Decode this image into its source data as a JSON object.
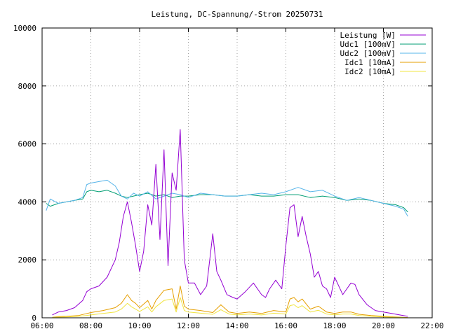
{
  "chart_data": {
    "type": "line",
    "title": "Leistung, DC-Spannung/-Strom 20250731",
    "xlabel": "",
    "ylabel": "",
    "x_range": [
      "06:00",
      "22:00"
    ],
    "ylim": [
      0,
      10000
    ],
    "x_ticks": [
      "06:00",
      "08:00",
      "10:00",
      "12:00",
      "14:00",
      "16:00",
      "18:00",
      "20:00",
      "22:00"
    ],
    "y_ticks": [
      "0",
      "2000",
      "4000",
      "6000",
      "8000",
      "10000"
    ],
    "grid": true,
    "legend_position": "top-right",
    "series": [
      {
        "name": "Leistung [W]",
        "color": "#9400d3",
        "x": [
          "06:25",
          "06:40",
          "07:00",
          "07:20",
          "07:40",
          "07:50",
          "08:00",
          "08:20",
          "08:40",
          "09:00",
          "09:10",
          "09:20",
          "09:30",
          "09:40",
          "09:50",
          "10:00",
          "10:10",
          "10:20",
          "10:30",
          "10:40",
          "10:50",
          "11:00",
          "11:10",
          "11:20",
          "11:30",
          "11:40",
          "11:50",
          "12:00",
          "12:15",
          "12:30",
          "12:45",
          "13:00",
          "13:10",
          "13:20",
          "13:35",
          "13:50",
          "14:00",
          "14:20",
          "14:40",
          "15:00",
          "15:10",
          "15:20",
          "15:35",
          "15:50",
          "16:00",
          "16:10",
          "16:20",
          "16:30",
          "16:40",
          "16:50",
          "17:00",
          "17:10",
          "17:20",
          "17:30",
          "17:40",
          "17:50",
          "18:00",
          "18:20",
          "18:40",
          "18:50",
          "19:00",
          "19:20",
          "19:40",
          "20:00",
          "20:20",
          "20:40",
          "21:00"
        ],
        "values": [
          100,
          200,
          250,
          350,
          600,
          900,
          1000,
          1100,
          1400,
          2000,
          2600,
          3500,
          4000,
          3300,
          2500,
          1600,
          2300,
          3900,
          3200,
          5300,
          2700,
          5800,
          1800,
          5000,
          4400,
          6500,
          2000,
          1200,
          1200,
          800,
          1100,
          2900,
          1600,
          1300,
          800,
          700,
          650,
          900,
          1200,
          800,
          700,
          1000,
          1300,
          1000,
          2500,
          3800,
          3900,
          2800,
          3500,
          2800,
          2200,
          1400,
          1600,
          1100,
          1000,
          700,
          1400,
          800,
          1200,
          1150,
          800,
          450,
          250,
          200,
          150,
          100,
          50
        ]
      },
      {
        "name": "Udc1 [100mV]",
        "color": "#009e73",
        "x": [
          "06:10",
          "06:20",
          "06:40",
          "07:00",
          "07:20",
          "07:40",
          "07:50",
          "08:00",
          "08:20",
          "08:40",
          "09:00",
          "09:15",
          "09:30",
          "09:45",
          "10:00",
          "10:20",
          "10:40",
          "11:00",
          "11:20",
          "11:40",
          "12:00",
          "12:30",
          "13:00",
          "13:30",
          "14:00",
          "14:30",
          "15:00",
          "15:30",
          "16:00",
          "16:30",
          "17:00",
          "17:30",
          "18:00",
          "18:30",
          "19:00",
          "19:30",
          "20:00",
          "20:30",
          "20:50",
          "21:00"
        ],
        "values": [
          3950,
          3850,
          3950,
          4000,
          4050,
          4100,
          4350,
          4400,
          4350,
          4400,
          4300,
          4200,
          4150,
          4200,
          4250,
          4300,
          4200,
          4250,
          4150,
          4200,
          4200,
          4250,
          4250,
          4200,
          4200,
          4250,
          4200,
          4200,
          4250,
          4250,
          4150,
          4200,
          4150,
          4050,
          4100,
          4050,
          3950,
          3900,
          3800,
          3650
        ]
      },
      {
        "name": "Udc2 [100mV]",
        "color": "#56b4e9",
        "x": [
          "06:10",
          "06:20",
          "06:40",
          "07:00",
          "07:20",
          "07:40",
          "07:50",
          "08:00",
          "08:20",
          "08:40",
          "09:00",
          "09:15",
          "09:30",
          "09:45",
          "10:00",
          "10:20",
          "10:40",
          "11:00",
          "11:20",
          "11:40",
          "12:00",
          "12:30",
          "13:00",
          "13:30",
          "14:00",
          "14:30",
          "15:00",
          "15:30",
          "16:00",
          "16:30",
          "17:00",
          "17:30",
          "18:00",
          "18:30",
          "19:00",
          "19:30",
          "20:00",
          "20:30",
          "20:50",
          "21:00"
        ],
        "values": [
          3700,
          4100,
          3950,
          4000,
          4050,
          4150,
          4600,
          4650,
          4700,
          4750,
          4550,
          4200,
          4100,
          4300,
          4200,
          4350,
          4100,
          4200,
          4300,
          4250,
          4150,
          4300,
          4250,
          4200,
          4200,
          4250,
          4300,
          4250,
          4350,
          4500,
          4350,
          4400,
          4200,
          4050,
          4150,
          4050,
          3950,
          3850,
          3750,
          3500
        ]
      },
      {
        "name": "Idc1 [10mA]",
        "color": "#e69f00",
        "x": [
          "06:25",
          "06:40",
          "07:00",
          "07:30",
          "08:00",
          "08:30",
          "09:00",
          "09:15",
          "09:30",
          "09:40",
          "09:50",
          "10:00",
          "10:20",
          "10:30",
          "10:40",
          "11:00",
          "11:20",
          "11:30",
          "11:40",
          "11:50",
          "12:00",
          "12:30",
          "13:00",
          "13:20",
          "13:40",
          "14:00",
          "14:30",
          "15:00",
          "15:30",
          "16:00",
          "16:10",
          "16:20",
          "16:30",
          "16:40",
          "17:00",
          "17:20",
          "17:40",
          "18:00",
          "18:20",
          "18:40",
          "19:00",
          "19:30",
          "20:00",
          "20:30",
          "21:00"
        ],
        "values": [
          20,
          40,
          50,
          80,
          180,
          250,
          350,
          500,
          800,
          600,
          500,
          350,
          600,
          300,
          600,
          950,
          1000,
          300,
          1100,
          400,
          300,
          250,
          180,
          450,
          200,
          150,
          200,
          150,
          250,
          200,
          650,
          700,
          550,
          650,
          300,
          400,
          200,
          150,
          200,
          200,
          120,
          80,
          50,
          30,
          10
        ]
      },
      {
        "name": "Idc2 [10mA]",
        "color": "#f0e442",
        "x": [
          "06:25",
          "06:40",
          "07:00",
          "07:30",
          "08:00",
          "08:30",
          "09:00",
          "09:15",
          "09:30",
          "09:40",
          "09:50",
          "10:00",
          "10:20",
          "10:30",
          "10:40",
          "11:00",
          "11:20",
          "11:30",
          "11:40",
          "11:50",
          "12:00",
          "12:30",
          "13:00",
          "13:20",
          "13:40",
          "14:00",
          "14:30",
          "15:00",
          "15:30",
          "16:00",
          "16:10",
          "16:20",
          "16:30",
          "16:40",
          "17:00",
          "17:20",
          "17:40",
          "18:00",
          "18:20",
          "18:40",
          "19:00",
          "19:30",
          "20:00",
          "20:30",
          "21:00"
        ],
        "values": [
          10,
          25,
          30,
          50,
          100,
          150,
          200,
          300,
          500,
          380,
          300,
          220,
          380,
          200,
          380,
          600,
          650,
          200,
          700,
          250,
          200,
          160,
          120,
          280,
          130,
          100,
          130,
          100,
          160,
          130,
          420,
          450,
          350,
          420,
          200,
          260,
          130,
          100,
          130,
          130,
          80,
          50,
          30,
          20,
          5
        ]
      }
    ]
  }
}
